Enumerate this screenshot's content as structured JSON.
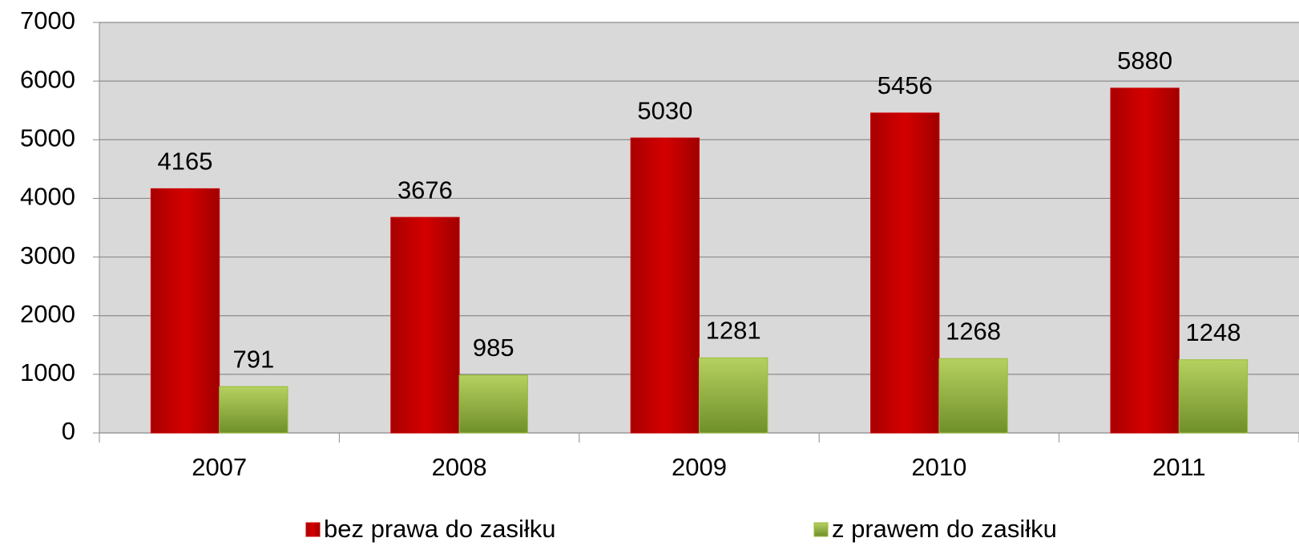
{
  "chart_data": {
    "type": "bar",
    "categories": [
      "2007",
      "2008",
      "2009",
      "2010",
      "2011"
    ],
    "series": [
      {
        "name": "bez prawa do zasiłku",
        "color": "#cc0000",
        "values": [
          4165,
          3676,
          5030,
          5456,
          5880
        ]
      },
      {
        "name": "z prawem do zasiłku",
        "color": "#9bbb3b",
        "values": [
          791,
          985,
          1281,
          1268,
          1248
        ]
      }
    ],
    "ylim": [
      0,
      7000
    ],
    "yticks": [
      0,
      1000,
      2000,
      3000,
      4000,
      5000,
      6000,
      7000
    ],
    "grid": true,
    "legend": "bottom"
  }
}
